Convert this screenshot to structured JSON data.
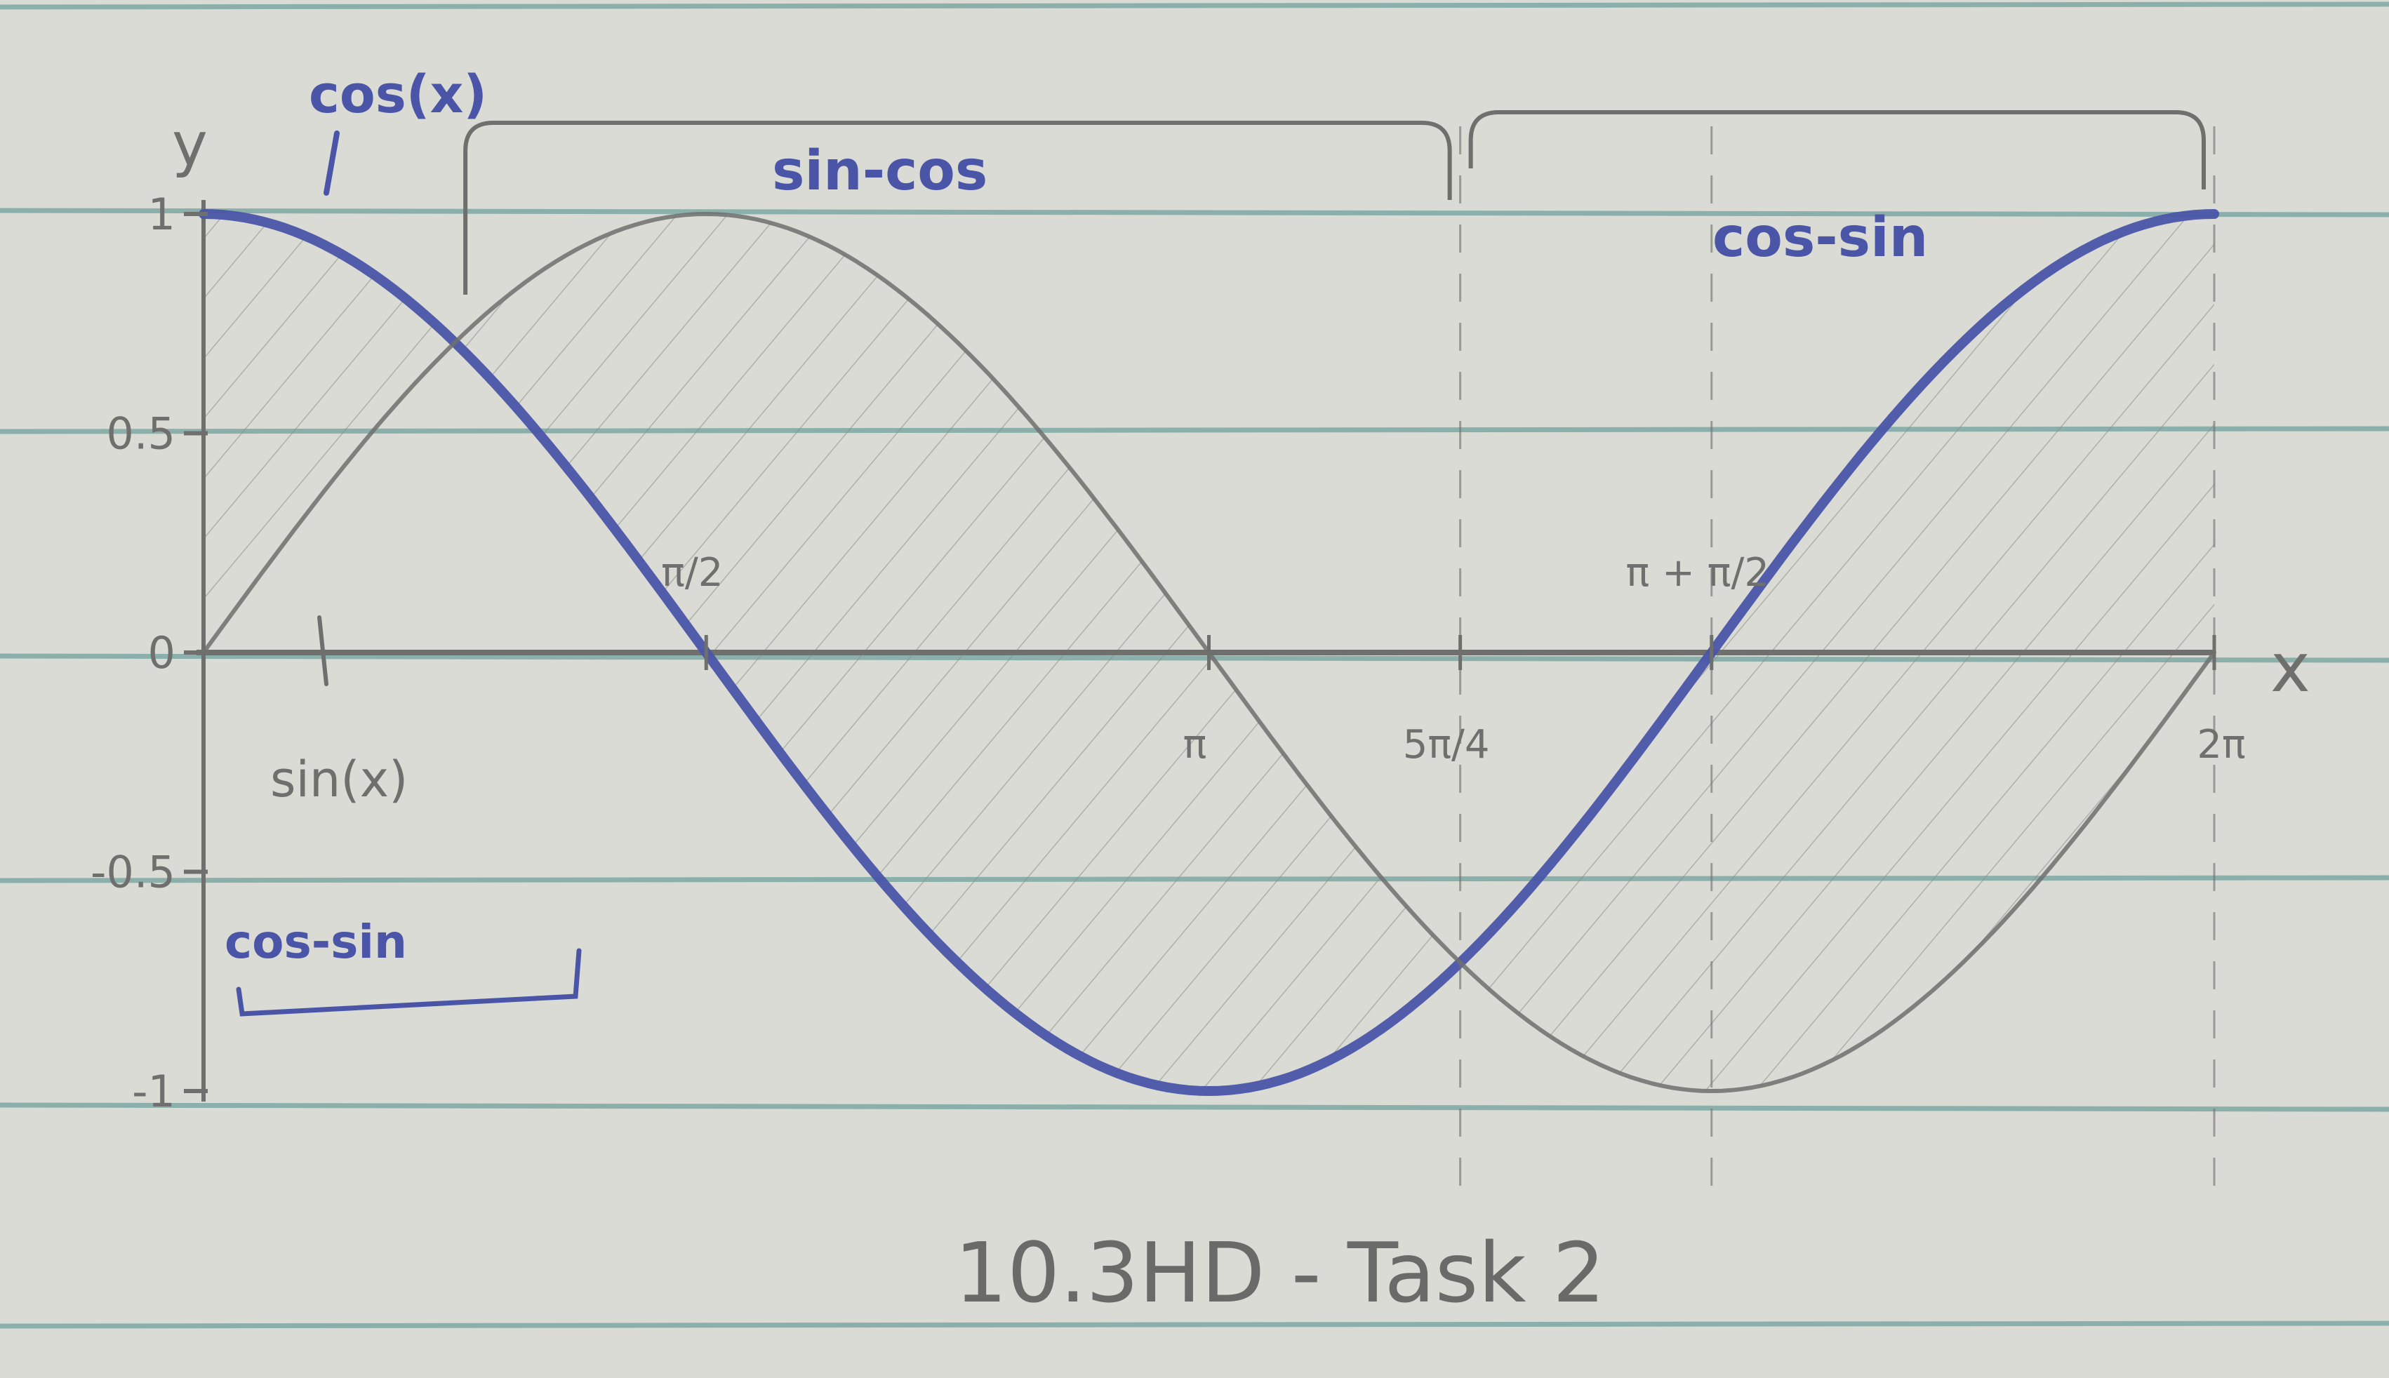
{
  "chart_data": {
    "type": "line",
    "x_axis_label": "x",
    "y_axis_label": "y",
    "ylim": [
      -1,
      1
    ],
    "xlim": [
      0,
      6.2832
    ],
    "y_ticks": [
      {
        "value": 1,
        "label": "1"
      },
      {
        "value": 0.5,
        "label": "0.5"
      },
      {
        "value": 0,
        "label": "0"
      },
      {
        "value": -0.5,
        "label": "-0.5"
      },
      {
        "value": -1,
        "label": "-1"
      }
    ],
    "x_marks": [
      {
        "value": 1.5708,
        "label": "π/2"
      },
      {
        "value": 3.1416,
        "label": "π"
      },
      {
        "value": 3.927,
        "label": "5π/4"
      },
      {
        "value": 4.7124,
        "label": "π + π/2"
      },
      {
        "value": 6.2832,
        "label": "2π"
      }
    ],
    "series": [
      {
        "name": "cos(x)",
        "function": "cos",
        "color": "#4a55a8"
      },
      {
        "name": "sin(x)",
        "function": "sin",
        "color": "#6f706e"
      }
    ],
    "shaded_regions": [
      {
        "from": 0,
        "to": 0.7854,
        "label": "cos-sin"
      },
      {
        "from": 0.7854,
        "to": 3.927,
        "label": "sin-cos"
      },
      {
        "from": 3.927,
        "to": 6.2832,
        "label": "cos-sin"
      }
    ],
    "title": "10.3HD - Task 2"
  },
  "colors": {
    "paper": "#d9dbd4",
    "rule_lines": "#7ea8a3",
    "pencil": "#6f706e",
    "ink": "#4a55a8"
  }
}
